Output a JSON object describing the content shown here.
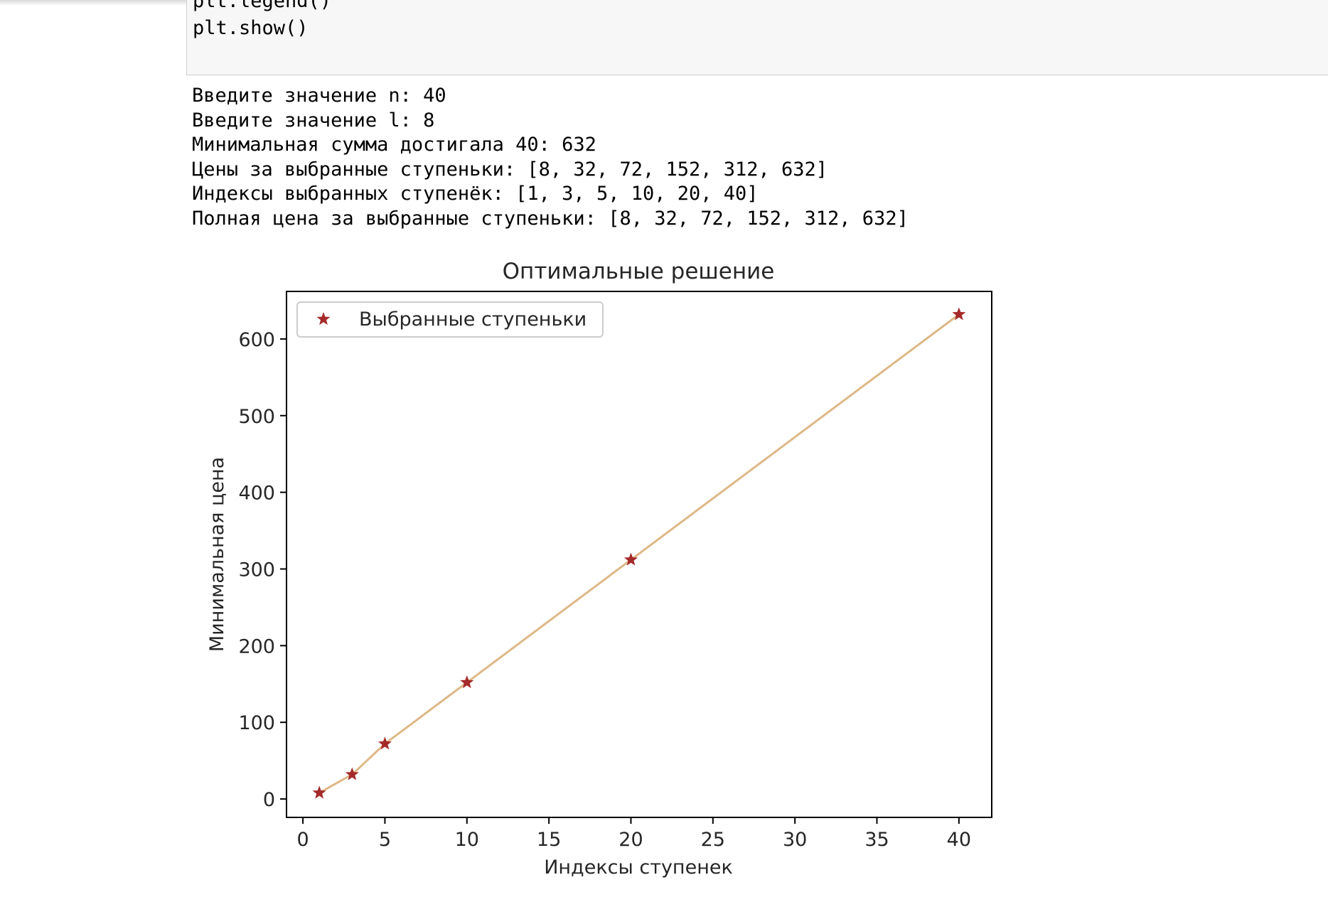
{
  "notebook": {
    "code_lines": [
      "plt.legend()",
      "plt.show()"
    ],
    "output_lines": [
      "Введите значение n: 40",
      "Введите значение l: 8",
      "Минимальная сумма достигала 40: 632",
      "Цены за выбранные ступеньки: [8, 32, 72, 152, 312, 632]",
      "Индексы выбранных ступенёк: [1, 3, 5, 10, 20, 40]",
      "Полная цена за выбранные ступеньки: [8, 32, 72, 152, 312, 632]"
    ]
  },
  "chart_data": {
    "type": "line",
    "title": "Оптимальные решение",
    "xlabel": "Индексы ступенек",
    "ylabel": "Минимальная цена",
    "xlim": [
      -1,
      42
    ],
    "ylim": [
      -24,
      662
    ],
    "xticks": [
      0,
      5,
      10,
      15,
      20,
      25,
      30,
      35,
      40
    ],
    "yticks": [
      0,
      100,
      200,
      300,
      400,
      500,
      600
    ],
    "x": [
      1,
      3,
      5,
      10,
      20,
      40
    ],
    "series": [
      {
        "name": "Выбранные ступеньки",
        "values": [
          8,
          32,
          72,
          152,
          312,
          632
        ],
        "marker": "star",
        "marker_color": "#a52a2a",
        "line_color": "#deb887"
      }
    ],
    "legend": "upper left",
    "grid": false
  }
}
